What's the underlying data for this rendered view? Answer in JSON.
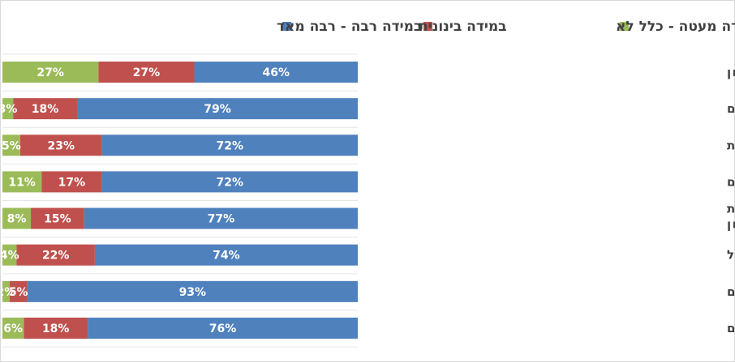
{
  "chart_data": {
    "type": "bar",
    "orientation": "horizontal-stacked-100",
    "legend_position": "top",
    "grid": false,
    "xlim": [
      0,
      100
    ],
    "series": [
      {
        "name": "במידה רבה - רבה מאד",
        "color": "#4f81bd",
        "values": [
          46,
          79,
          72,
          72,
          77,
          74,
          93,
          76
        ]
      },
      {
        "name": "במידה בינונית",
        "color": "#c0504d",
        "values": [
          27,
          18,
          23,
          17,
          15,
          22,
          5,
          18
        ]
      },
      {
        "name": "במידה מעטה - כלל לא",
        "color": "#9bbb59",
        "values": [
          27,
          3,
          5,
          11,
          8,
          4,
          2,
          6
        ]
      }
    ],
    "categories": [
      [
        "יש שינוי בקשר בין המשפחות למעון"
      ],
      [
        "ההורים מודעים יותר לחשיבות הקריאה לילדים"
      ],
      [
        "ההורים קוראים יותר עם ילדיהם בבית"
      ],
      [
        "יש שינוי בסגנון עבודת הצוות במעון סביב הספרים"
      ],
      [
        "התכנית מחזקת את העיסוק בנושאי ערכים ומורשת",
        "במעון"
      ],
      [
        "אוצר המילים של הילדים גדל"
      ],
      [
        "הילדים נחשפים לספרים איכותיים"
      ],
      [
        "הילדים קוראים יותר ספרים"
      ]
    ],
    "value_labels": [
      [
        "46%",
        "27%",
        "27%"
      ],
      [
        "79%",
        "18%",
        "3%"
      ],
      [
        "72%",
        "23%",
        "5%"
      ],
      [
        "72%",
        "17%",
        "11%"
      ],
      [
        "77%",
        "15%",
        "8%"
      ],
      [
        "74%",
        "22%",
        "4%"
      ],
      [
        "93%",
        "5%",
        "2%"
      ],
      [
        "76%",
        "18%",
        "6%"
      ]
    ]
  }
}
